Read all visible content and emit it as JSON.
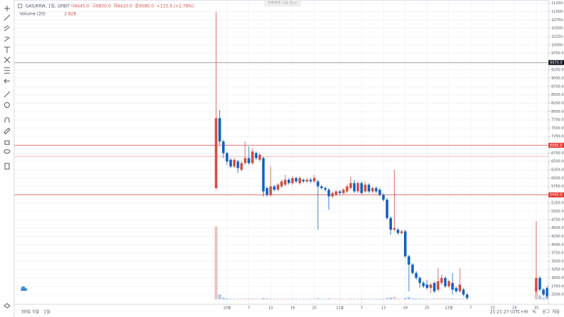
{
  "chart_data": {
    "type": "candlestick",
    "symbol": "GAS/KRW, 1일, UPBIT",
    "legend_ohlc": [
      "시6445.0",
      "고6830.0",
      "저6410.0",
      "종6580.0",
      "+115.0 (+1.78%)"
    ],
    "volume_title": "Volume (20)",
    "volume_value": "2.82K",
    "banner": "전체화면 나감 (Esc)",
    "categories": [
      null,
      null,
      null,
      "10월",
      null,
      null,
      null,
      null,
      null,
      "7",
      null,
      null,
      null,
      null,
      null,
      "13",
      null,
      null,
      null,
      null,
      null,
      "19",
      null,
      null,
      null,
      null,
      null,
      "25",
      null,
      null,
      null,
      null,
      null,
      null,
      "11월",
      null,
      null,
      null,
      null,
      null,
      "7",
      null,
      null,
      null,
      null,
      null,
      "13",
      null,
      null,
      null,
      null,
      null,
      "19",
      null,
      null,
      null,
      null,
      null,
      "25",
      null,
      null,
      null,
      null,
      null,
      "12월",
      null,
      null,
      null,
      null,
      null,
      "7",
      null,
      null,
      null,
      null,
      null,
      "13",
      null,
      null,
      null,
      null,
      null,
      "19",
      null,
      null,
      null,
      null,
      null,
      "25",
      null,
      null,
      null
    ],
    "open": [
      5700,
      7800,
      7100,
      6750,
      6550,
      6350,
      6500,
      6250,
      6450,
      6600,
      6450,
      6750,
      6550,
      6600,
      5700,
      5500,
      5750,
      5650,
      5750,
      5800,
      5950,
      5850,
      6000,
      5850,
      5950,
      5900,
      5950,
      5900,
      5900,
      5750,
      5700,
      5650,
      5450,
      5500,
      5600,
      5550,
      5600,
      5700,
      5850,
      5600,
      5850,
      5600,
      5800,
      5600,
      5700,
      5650,
      5500,
      5350,
      4800,
      4450,
      4450,
      4350,
      4400,
      3650,
      3400,
      3150,
      3000,
      2850,
      2800,
      2700,
      2850,
      2650,
      2850,
      3000,
      2750,
      2850,
      2700,
      2600,
      2650,
      2500,
      null,
      null,
      null,
      null,
      null,
      null,
      null,
      null,
      null,
      null,
      null,
      null,
      null,
      null,
      null,
      null,
      null,
      null,
      2600,
      3000,
      2650,
      2700
    ],
    "high": [
      11000,
      8050,
      7150,
      6800,
      6600,
      6600,
      6550,
      6500,
      7100,
      6950,
      6900,
      6800,
      6750,
      6650,
      5750,
      6350,
      5800,
      5850,
      5950,
      6100,
      6000,
      6050,
      6050,
      6050,
      5980,
      6000,
      6000,
      6100,
      5950,
      5800,
      5750,
      5700,
      5600,
      5650,
      5650,
      5700,
      5800,
      6050,
      5950,
      5900,
      5900,
      5900,
      5850,
      5750,
      5750,
      5700,
      5550,
      5400,
      4850,
      6250,
      4500,
      4450,
      4450,
      3700,
      3450,
      3200,
      3050,
      2900,
      2950,
      2850,
      2900,
      3300,
      3100,
      3050,
      2950,
      3150,
      2750,
      3300,
      2700,
      2550,
      null,
      null,
      null,
      null,
      null,
      null,
      null,
      null,
      null,
      null,
      null,
      null,
      null,
      null,
      null,
      null,
      null,
      null,
      4700,
      3050,
      2700,
      2750
    ],
    "low": [
      5650,
      7000,
      6600,
      6400,
      6300,
      6300,
      6150,
      6200,
      6400,
      6400,
      6400,
      6550,
      6500,
      5450,
      5450,
      5450,
      5600,
      5600,
      5700,
      5750,
      5800,
      5800,
      5850,
      5800,
      5850,
      5850,
      5850,
      5850,
      4450,
      5650,
      5600,
      5050,
      5400,
      5450,
      5500,
      5500,
      5550,
      5650,
      5550,
      5550,
      5500,
      5550,
      5550,
      5550,
      5550,
      5450,
      5300,
      4750,
      4300,
      4400,
      4300,
      4300,
      3600,
      2600,
      3100,
      2950,
      2700,
      2700,
      2650,
      2550,
      2550,
      2600,
      2800,
      2700,
      2700,
      2500,
      2550,
      2550,
      2450,
      2350,
      null,
      null,
      null,
      null,
      null,
      null,
      null,
      null,
      null,
      null,
      null,
      null,
      null,
      null,
      null,
      null,
      null,
      null,
      2550,
      2600,
      2450,
      2400
    ],
    "close": [
      7800,
      7100,
      6750,
      6500,
      6350,
      6550,
      6300,
      6450,
      6600,
      6450,
      6800,
      6600,
      6700,
      5600,
      5500,
      5750,
      5650,
      5800,
      5900,
      5950,
      5850,
      6000,
      5900,
      6000,
      5900,
      5950,
      5900,
      6000,
      5750,
      5700,
      5650,
      5450,
      5550,
      5600,
      5550,
      5650,
      5750,
      5850,
      5600,
      5850,
      5550,
      5800,
      5600,
      5700,
      5600,
      5500,
      5350,
      4800,
      4450,
      4500,
      4350,
      4400,
      3650,
      3400,
      3150,
      3000,
      2850,
      2750,
      2700,
      2800,
      2600,
      2900,
      3000,
      2750,
      2900,
      2650,
      2600,
      2800,
      2500,
      2400,
      null,
      null,
      null,
      null,
      null,
      null,
      null,
      null,
      null,
      null,
      null,
      null,
      null,
      null,
      null,
      null,
      null,
      null,
      3000,
      2650,
      2500,
      2450
    ],
    "volume": [
      45000,
      3000,
      1200,
      500,
      400,
      400,
      400,
      400,
      600,
      400,
      500,
      400,
      400,
      900,
      600,
      500,
      400,
      400,
      400,
      400,
      400,
      400,
      400,
      400,
      400,
      400,
      400,
      400,
      700,
      400,
      400,
      600,
      400,
      400,
      400,
      400,
      400,
      500,
      400,
      400,
      400,
      400,
      400,
      400,
      400,
      400,
      500,
      900,
      1200,
      1500,
      500,
      400,
      900,
      1500,
      700,
      600,
      500,
      400,
      400,
      400,
      500,
      700,
      500,
      500,
      400,
      600,
      400,
      600,
      400,
      500,
      null,
      null,
      null,
      null,
      null,
      null,
      null,
      null,
      null,
      null,
      null,
      null,
      null,
      null,
      null,
      null,
      null,
      null,
      8000,
      2500,
      1000,
      3500
    ],
    "volume_ylim": [
      0,
      100000
    ],
    "up_color": "#d24f45",
    "down_color": "#1261c4",
    "ylim": [
      2250,
      11350
    ],
    "yticks": [
      {
        "value": 2500,
        "label": "2500.0"
      },
      {
        "value": 2750,
        "label": "2750.0"
      },
      {
        "value": 3000,
        "label": "3000.0"
      },
      {
        "value": 3250,
        "label": "3250.0"
      },
      {
        "value": 3500,
        "label": "3500.0"
      },
      {
        "value": 3750,
        "label": "3750.0"
      },
      {
        "value": 4000,
        "label": "4000.0"
      },
      {
        "value": 4250,
        "label": "4250.0"
      },
      {
        "value": 4500,
        "label": "4500.0"
      },
      {
        "value": 4750,
        "label": "4750.0"
      },
      {
        "value": 5000,
        "label": "5000.0"
      },
      {
        "value": 5250,
        "label": "5250.0"
      },
      {
        "value": 5750,
        "label": "5750.0"
      },
      {
        "value": 6000,
        "label": "6000.0"
      },
      {
        "value": 6250,
        "label": "6250.0"
      },
      {
        "value": 6500,
        "label": "6500.0"
      },
      {
        "value": 6750,
        "label": "6750.0"
      },
      {
        "value": 7250,
        "label": "7250.0"
      },
      {
        "value": 7500,
        "label": "7500.0"
      },
      {
        "value": 7750,
        "label": "7750.0"
      },
      {
        "value": 8000,
        "label": "8000.0"
      },
      {
        "value": 8250,
        "label": "8250.0"
      },
      {
        "value": 8500,
        "label": "8500.0"
      },
      {
        "value": 8750,
        "label": "8750.0"
      },
      {
        "value": 9000,
        "label": "9000.0"
      },
      {
        "value": 9250,
        "label": "9250.0"
      },
      {
        "value": 9750,
        "label": "9750.0"
      },
      {
        "value": 10000,
        "label": "10000.0"
      },
      {
        "value": 10250,
        "label": "10250.0"
      },
      {
        "value": 10500,
        "label": "10500.0"
      },
      {
        "value": 10750,
        "label": "10750.0"
      },
      {
        "value": 11000,
        "label": "11000.0"
      },
      {
        "value": 11250,
        "label": "11250.0"
      }
    ],
    "hlines": [
      {
        "value": 9470,
        "label": "9470.0",
        "color": "#9e9e9e",
        "label_color": "#131722"
      },
      {
        "value": 6985,
        "label": "6985.0",
        "color": "#e57373",
        "label_color": "#e53935"
      },
      {
        "value": 6650,
        "color": "#f3b6b6"
      },
      {
        "value": 5495,
        "label": "5495.0",
        "color": "#e57373",
        "label_color": "#e53935"
      }
    ],
    "grid": true,
    "ranges": [
      "30일",
      "5일",
      "1일"
    ],
    "clock": "21:21:27 (UTC+9)",
    "scale_options": [
      "%",
      "로그",
      "자동"
    ]
  }
}
